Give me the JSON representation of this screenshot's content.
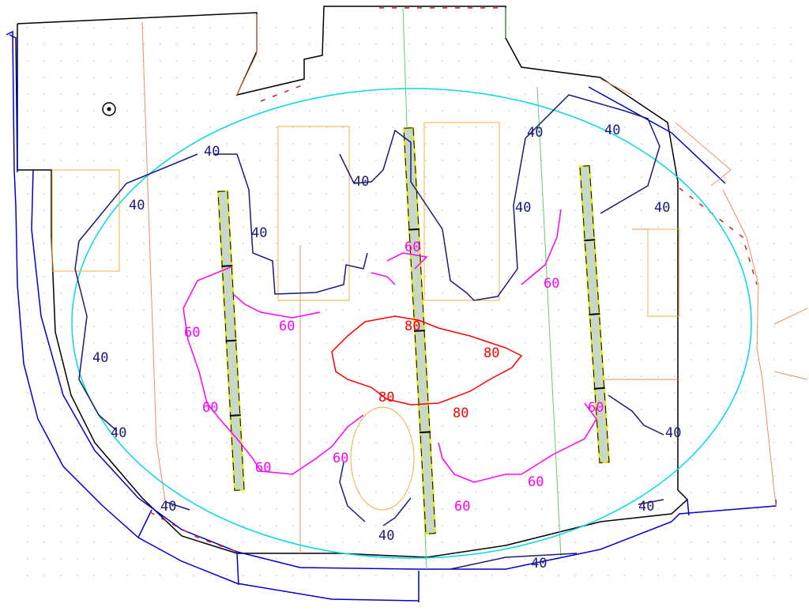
{
  "levels": {
    "low": "40",
    "mid": "60",
    "high": "80"
  },
  "colors": {
    "level_40": "#1a1a7a",
    "level_60": "#ff00ff",
    "level_80": "#ff0000",
    "ellipse": "#00d8e8",
    "walls": "#0000cc",
    "outline": "#000000",
    "rooms": "#f0b040",
    "zones": "#e89060",
    "green_zone": "#66cc66",
    "fixture_fill": "#c8d8c8",
    "fixture_outline": "#e8e800",
    "grid_values": "#c8c8c8"
  },
  "grid_values_note_shown": false,
  "icons": {
    "marker": "target-icon"
  }
}
